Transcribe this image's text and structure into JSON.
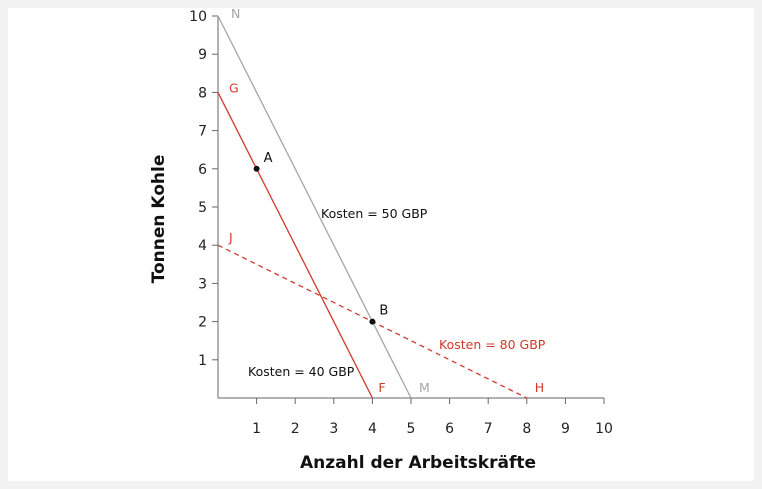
{
  "chart_data": {
    "type": "line",
    "xlabel": "Anzahl der Arbeitskräfte",
    "ylabel": "Tonnen Kohle",
    "xlim": [
      0,
      10
    ],
    "ylim": [
      0,
      10
    ],
    "x_ticks": [
      "1",
      "2",
      "3",
      "4",
      "5",
      "6",
      "7",
      "8",
      "9",
      "10"
    ],
    "y_ticks": [
      "1",
      "2",
      "3",
      "4",
      "5",
      "6",
      "7",
      "8",
      "9",
      "10"
    ],
    "grid": false,
    "colors": {
      "red": "#d0392b",
      "gray": "#a6a6a6",
      "black": "#111111"
    },
    "lines": [
      {
        "label": "Kosten = 40 GBP",
        "from_label": "G",
        "to_label": "F",
        "x": [
          0,
          4
        ],
        "y": [
          8,
          0
        ],
        "color": "#d0392b",
        "style": "solid",
        "label_color": "#111111"
      },
      {
        "label": "Kosten = 50 GBP",
        "from_label": "N",
        "to_label": "M",
        "x": [
          0,
          5
        ],
        "y": [
          10,
          0
        ],
        "color": "#a6a6a6",
        "style": "solid",
        "label_color": "#111111"
      },
      {
        "label": "Kosten = 80 GBP",
        "from_label": "J",
        "to_label": "H",
        "x": [
          0,
          8
        ],
        "y": [
          4,
          0
        ],
        "color": "#d0392b",
        "style": "dashed",
        "label_color": "#d0392b"
      }
    ],
    "points": [
      {
        "label": "A",
        "x": 1,
        "y": 6
      },
      {
        "label": "B",
        "x": 4,
        "y": 2
      }
    ]
  }
}
